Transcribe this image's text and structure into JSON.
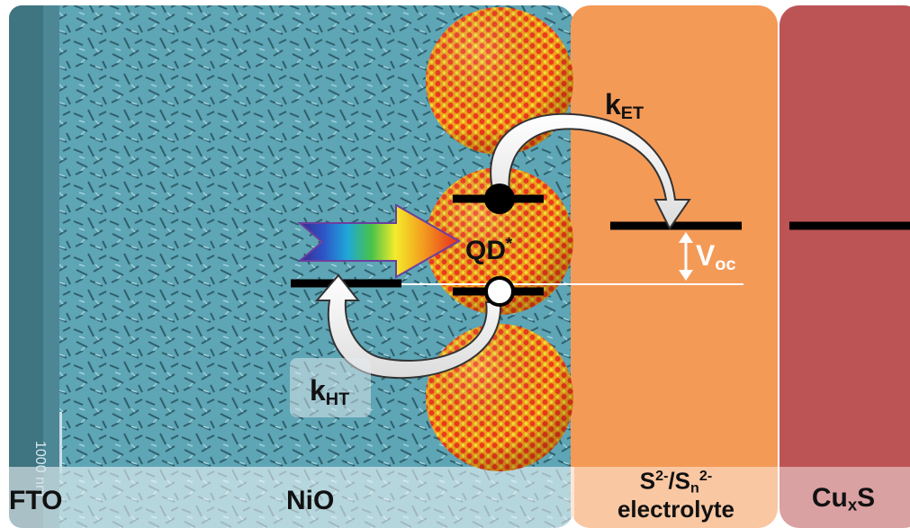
{
  "layers": {
    "fto": "FTO",
    "nio": "NiO",
    "electrolyte_main": "S",
    "electrolyte_sup1": "2-",
    "electrolyte_mid": "/S",
    "electrolyte_sub": "n",
    "electrolyte_sup2": "2-",
    "electrolyte_line2": "electrolyte",
    "cathode_main": "Cu",
    "cathode_sub": "x",
    "cathode_end": "S"
  },
  "labels": {
    "k_et_main": "k",
    "k_et_sub": "ET",
    "k_ht_main": "k",
    "k_ht_sub": "HT",
    "qd_main": "QD",
    "qd_sup": "*",
    "voc_main": "V",
    "voc_sub": "oc"
  },
  "scale_bar": {
    "label": "1000 nm"
  },
  "colors": {
    "fto": "#3f7481",
    "nio": "#5ea5b5",
    "electrolyte": "#f49a57",
    "cathode": "#bc5456",
    "qd_base": "#f2a21c",
    "qd_dot_red": "#ef3a1c",
    "qd_dot_yellow": "#f3e23a",
    "level_line": "#000000"
  },
  "icons": {
    "light_arrow": "rainbow-arrow-icon",
    "electron": "electron-filled-circle-icon",
    "hole": "hole-open-circle-icon"
  }
}
